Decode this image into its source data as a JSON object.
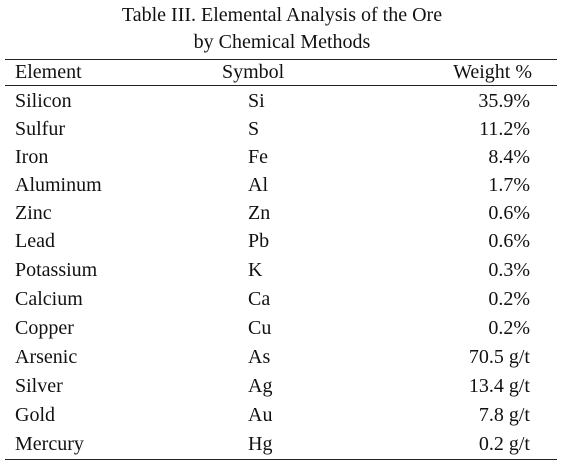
{
  "table": {
    "caption_line1": "Table III.  Elemental Analysis of the Ore",
    "caption_line2": "by Chemical Methods",
    "headers": {
      "element": "Element",
      "symbol": "Symbol",
      "weight": "Weight %"
    },
    "rows": [
      {
        "element": "Silicon",
        "symbol": "Si",
        "weight": "35.9%"
      },
      {
        "element": "Sulfur",
        "symbol": "S",
        "weight": "11.2%"
      },
      {
        "element": "Iron",
        "symbol": "Fe",
        "weight": "8.4%"
      },
      {
        "element": "Aluminum",
        "symbol": "Al",
        "weight": "1.7%"
      },
      {
        "element": "Zinc",
        "symbol": "Zn",
        "weight": "0.6%"
      },
      {
        "element": "Lead",
        "symbol": "Pb",
        "weight": "0.6%"
      },
      {
        "element": "Potassium",
        "symbol": "K",
        "weight": "0.3%"
      },
      {
        "element": "Calcium",
        "symbol": "Ca",
        "weight": "0.2%"
      },
      {
        "element": "Copper",
        "symbol": "Cu",
        "weight": "0.2%"
      },
      {
        "element": "Arsenic",
        "symbol": "As",
        "weight": "70.5 g/t"
      },
      {
        "element": "Silver",
        "symbol": "Ag",
        "weight": "13.4 g/t"
      },
      {
        "element": "Gold",
        "symbol": "Au",
        "weight": "7.8 g/t"
      },
      {
        "element": "Mercury",
        "symbol": "Hg",
        "weight": "0.2 g/t"
      }
    ]
  }
}
